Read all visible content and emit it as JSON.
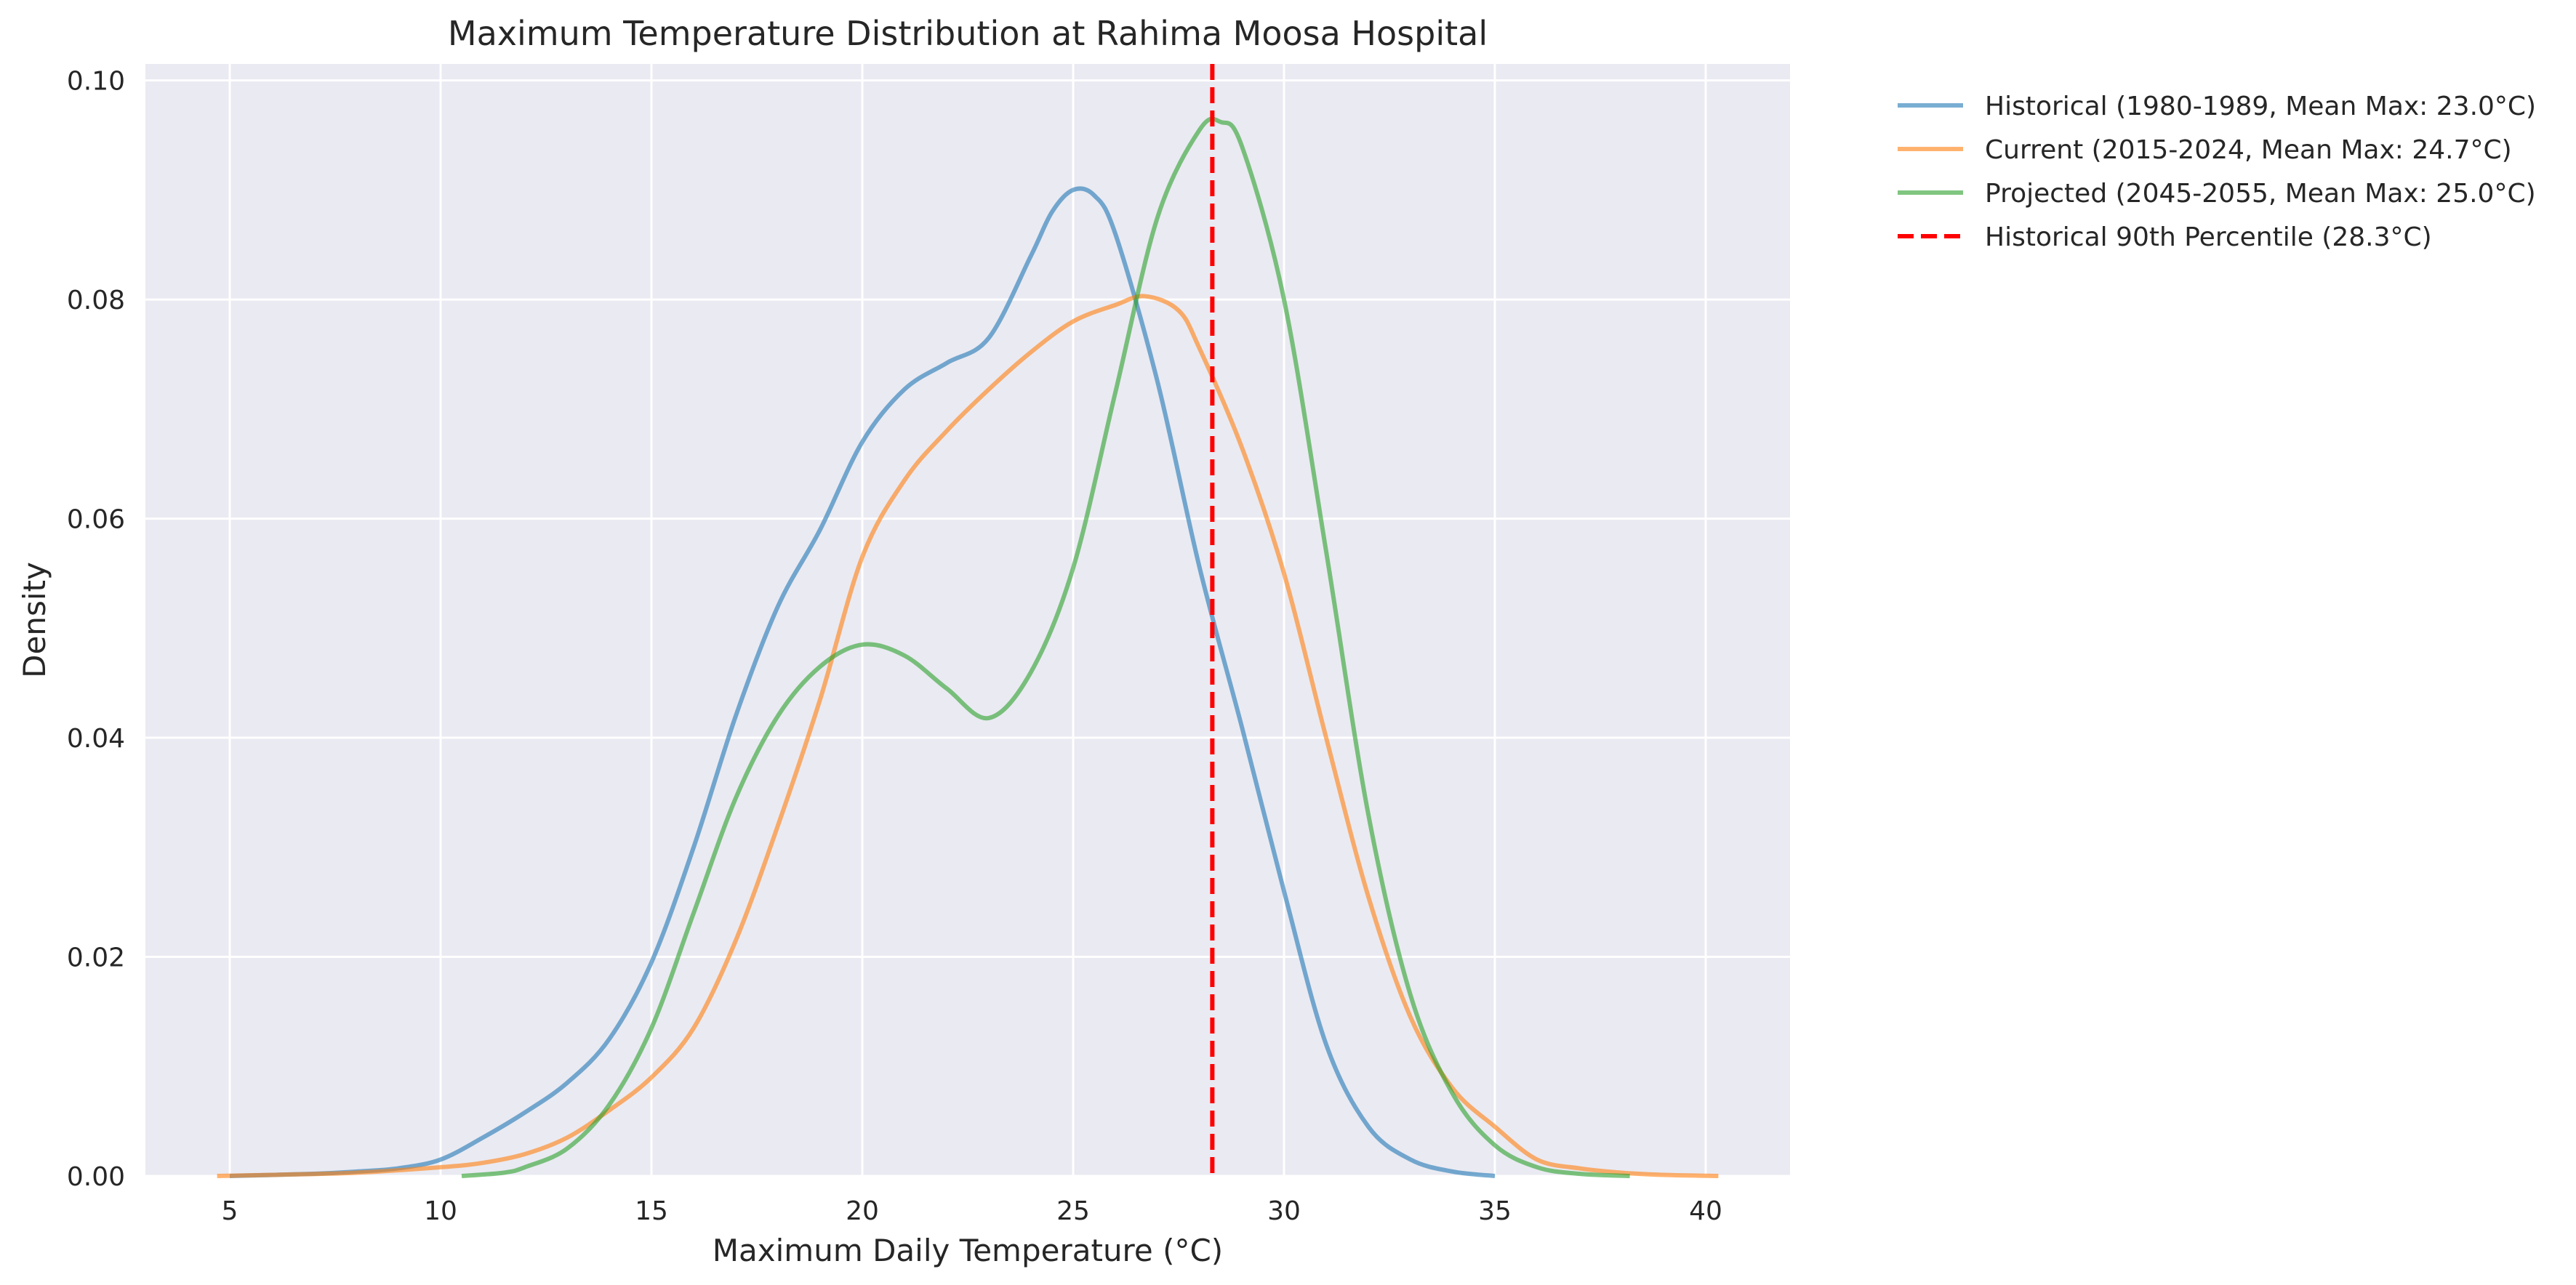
{
  "chart_data": {
    "type": "line",
    "title": "Maximum Temperature Distribution at Rahima Moosa Hospital",
    "xlabel": "Maximum Daily Temperature (°C)",
    "ylabel": "Density",
    "xlim": [
      3,
      42
    ],
    "ylim": [
      0,
      0.1015
    ],
    "x_ticks": [
      5,
      10,
      15,
      20,
      25,
      30,
      35,
      40
    ],
    "y_ticks": [
      0.0,
      0.02,
      0.04,
      0.06,
      0.08,
      0.1
    ],
    "x_tick_labels": [
      "5",
      "10",
      "15",
      "20",
      "25",
      "30",
      "35",
      "40"
    ],
    "y_tick_labels": [
      "0.00",
      "0.02",
      "0.04",
      "0.06",
      "0.08",
      "0.10"
    ],
    "grid": true,
    "legend_position": "outside-top-right",
    "series": [
      {
        "name": "Historical (1980-1989, Mean Max: 23.0°C)",
        "color": "#1f77b4",
        "x": [
          5,
          7,
          8,
          9,
          10,
          11,
          12,
          13,
          14,
          15,
          16,
          17,
          18,
          19,
          20,
          21,
          22,
          23,
          24,
          24.5,
          25,
          25.5,
          26,
          27,
          28,
          29,
          30,
          31,
          32,
          33,
          34,
          35
        ],
        "y": [
          0.0,
          0.0002,
          0.0004,
          0.0007,
          0.0015,
          0.0035,
          0.0058,
          0.0085,
          0.0125,
          0.0195,
          0.03,
          0.042,
          0.052,
          0.059,
          0.067,
          0.0718,
          0.0742,
          0.0765,
          0.084,
          0.088,
          0.09,
          0.0895,
          0.086,
          0.0725,
          0.0555,
          0.041,
          0.026,
          0.012,
          0.0045,
          0.0015,
          0.0004,
          0.0
        ]
      },
      {
        "name": "Current (2015-2024, Mean Max: 24.7°C)",
        "color": "#ff7f0e",
        "x": [
          4.7,
          6,
          8,
          10,
          11,
          12,
          13,
          14,
          15,
          16,
          17,
          18,
          19,
          20,
          21,
          22,
          23,
          24,
          25,
          26,
          26.7,
          27.5,
          28,
          29,
          30,
          31,
          32,
          33,
          34,
          35,
          36,
          37,
          38,
          39,
          40.3
        ],
        "y": [
          0.0,
          0.0001,
          0.0003,
          0.0008,
          0.0012,
          0.002,
          0.0035,
          0.006,
          0.009,
          0.0135,
          0.0215,
          0.032,
          0.0435,
          0.0565,
          0.0635,
          0.068,
          0.0718,
          0.0752,
          0.078,
          0.0795,
          0.0803,
          0.079,
          0.0755,
          0.0665,
          0.055,
          0.04,
          0.0255,
          0.0145,
          0.008,
          0.0045,
          0.0015,
          0.0007,
          0.0003,
          0.0001,
          0.0
        ]
      },
      {
        "name": "Projected (2045-2055, Mean Max: 25.0°C)",
        "color": "#2ca02c",
        "x": [
          10.5,
          11.5,
          12,
          13,
          14,
          15,
          16,
          17,
          18,
          19,
          20,
          21,
          22,
          23,
          24,
          25,
          26,
          27,
          28,
          28.5,
          29,
          30,
          31,
          32,
          33,
          34,
          35,
          36,
          37,
          38.2
        ],
        "y": [
          0.0,
          0.0003,
          0.0008,
          0.0025,
          0.0065,
          0.0135,
          0.024,
          0.0345,
          0.042,
          0.0465,
          0.0485,
          0.0475,
          0.0445,
          0.0418,
          0.046,
          0.0555,
          0.0715,
          0.0875,
          0.0955,
          0.0962,
          0.094,
          0.08,
          0.057,
          0.033,
          0.0165,
          0.0075,
          0.0028,
          0.0008,
          0.0002,
          0.0
        ]
      },
      {
        "name": "Historical 90th Percentile (28.3°C)",
        "color": "#ff0000",
        "style": "dashed",
        "vline_x": 28.3
      }
    ]
  }
}
